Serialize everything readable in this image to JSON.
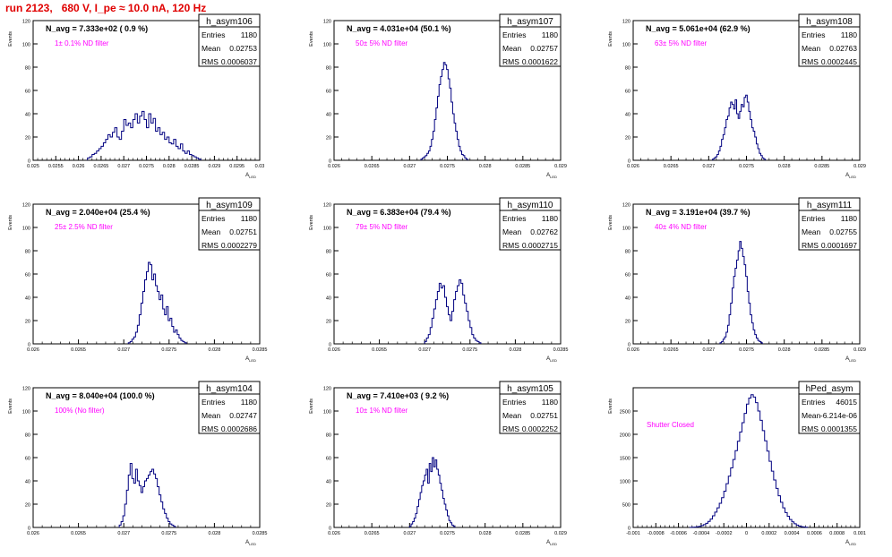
{
  "page_title": "run 2123,   680 V, I_pe ≈ 10.0 nA, 120 Hz",
  "colors": {
    "title": "#e00000",
    "annotation": "#ff00ff",
    "series": "#000080",
    "axis": "#000000"
  },
  "stats_labels": {
    "entries": "Entries",
    "mean": "Mean",
    "rms": "RMS"
  },
  "chart_data": [
    {
      "type": "bar",
      "histogram": true,
      "name": "h_asym106",
      "navg": "N_avg = 7.333e+02 ( 0.9 %)",
      "annotation": "1± 0.1% ND filter",
      "stats": {
        "entries": "1180",
        "mean": "0.02753",
        "rms": "0.0006037"
      },
      "xlabel": "A_{LED}",
      "ylabel": "Events",
      "xlim": [
        0.025,
        0.03
      ],
      "ylim": [
        0,
        120
      ],
      "xticks": [
        "0.025",
        "0.0255",
        "0.026",
        "0.0265",
        "0.027",
        "0.0275",
        "0.028",
        "0.0285",
        "0.029",
        "0.0295",
        "0.03"
      ],
      "yticks": [
        "0",
        "20",
        "40",
        "60",
        "80",
        "100",
        "120"
      ],
      "bin_start": 0.0262,
      "bin_width": 5e-05,
      "counts": [
        2,
        3,
        5,
        6,
        8,
        10,
        12,
        15,
        18,
        22,
        20,
        24,
        28,
        20,
        18,
        25,
        35,
        30,
        32,
        28,
        35,
        40,
        32,
        38,
        42,
        35,
        28,
        40,
        32,
        36,
        25,
        28,
        22,
        24,
        18,
        20,
        15,
        14,
        18,
        12,
        10,
        14,
        8,
        6,
        8,
        5,
        4,
        3,
        2,
        1
      ]
    },
    {
      "type": "bar",
      "histogram": true,
      "name": "h_asym107",
      "navg": "N_avg = 4.031e+04 (50.1 %)",
      "annotation": "50± 5% ND filter",
      "stats": {
        "entries": "1180",
        "mean": "0.02757",
        "rms": "0.0001622"
      },
      "xlabel": "A_{LED}",
      "ylabel": "Events",
      "xlim": [
        0.026,
        0.029
      ],
      "ylim": [
        0,
        120
      ],
      "xticks": [
        "0.026",
        "0.0265",
        "0.027",
        "0.0275",
        "0.028",
        "0.0285",
        "0.029"
      ],
      "yticks": [
        "0",
        "20",
        "40",
        "60",
        "80",
        "100",
        "120"
      ],
      "bin_start": 0.02715,
      "bin_width": 2e-05,
      "counts": [
        1,
        2,
        3,
        4,
        6,
        8,
        12,
        18,
        25,
        35,
        45,
        55,
        65,
        72,
        78,
        84,
        82,
        78,
        70,
        62,
        50,
        40,
        32,
        25,
        18,
        12,
        8,
        5,
        4,
        2,
        1
      ]
    },
    {
      "type": "bar",
      "histogram": true,
      "name": "h_asym108",
      "navg": "N_avg = 5.061e+04 (62.9 %)",
      "annotation": "63± 5% ND filter",
      "stats": {
        "entries": "1180",
        "mean": "0.02763",
        "rms": "0.0002445"
      },
      "xlabel": "A_{LED}",
      "ylabel": "Events",
      "xlim": [
        0.026,
        0.029
      ],
      "ylim": [
        0,
        120
      ],
      "xticks": [
        "0.026",
        "0.0265",
        "0.027",
        "0.0275",
        "0.028",
        "0.0285",
        "0.029"
      ],
      "yticks": [
        "0",
        "20",
        "40",
        "60",
        "80",
        "100",
        "120"
      ],
      "bin_start": 0.02705,
      "bin_width": 2e-05,
      "counts": [
        1,
        2,
        3,
        5,
        8,
        12,
        18,
        22,
        28,
        35,
        38,
        45,
        50,
        48,
        44,
        52,
        40,
        36,
        42,
        48,
        46,
        54,
        56,
        50,
        42,
        35,
        28,
        25,
        20,
        14,
        10,
        6,
        4,
        2,
        1
      ]
    },
    {
      "type": "bar",
      "histogram": true,
      "name": "h_asym109",
      "navg": "N_avg = 2.040e+04 (25.4 %)",
      "annotation": "25± 2.5% ND filter",
      "stats": {
        "entries": "1180",
        "mean": "0.02751",
        "rms": "0.0002279"
      },
      "xlabel": "A_{LED}",
      "ylabel": "Events",
      "xlim": [
        0.026,
        0.0285
      ],
      "ylim": [
        0,
        120
      ],
      "xticks": [
        "0.026",
        "0.0265",
        "0.027",
        "0.0275",
        "0.028",
        "0.0285"
      ],
      "yticks": [
        "0",
        "20",
        "40",
        "60",
        "80",
        "100",
        "120"
      ],
      "bin_start": 0.02705,
      "bin_width": 2e-05,
      "counts": [
        1,
        2,
        4,
        6,
        10,
        16,
        25,
        35,
        45,
        55,
        62,
        70,
        68,
        55,
        60,
        50,
        45,
        38,
        42,
        30,
        25,
        32,
        20,
        22,
        15,
        10,
        12,
        8,
        5,
        3,
        2,
        1
      ]
    },
    {
      "type": "bar",
      "histogram": true,
      "name": "h_asym110",
      "navg": "N_avg = 6.383e+04 (79.4 %)",
      "annotation": "79± 5% ND filter",
      "stats": {
        "entries": "1180",
        "mean": "0.02762",
        "rms": "0.0002715"
      },
      "xlabel": "A_{LED}",
      "ylabel": "Events",
      "xlim": [
        0.026,
        0.0285
      ],
      "ylim": [
        0,
        120
      ],
      "xticks": [
        "0.026",
        "0.0265",
        "0.027",
        "0.0275",
        "0.028",
        "0.0285"
      ],
      "yticks": [
        "0",
        "20",
        "40",
        "60",
        "80",
        "100",
        "120"
      ],
      "bin_start": 0.027,
      "bin_width": 2e-05,
      "counts": [
        2,
        5,
        8,
        14,
        22,
        30,
        38,
        45,
        52,
        48,
        50,
        40,
        32,
        25,
        20,
        28,
        38,
        45,
        50,
        55,
        52,
        42,
        35,
        28,
        20,
        14,
        8,
        5,
        3,
        2,
        1
      ]
    },
    {
      "type": "bar",
      "histogram": true,
      "name": "h_asym111",
      "navg": "N_avg = 3.191e+04 (39.7 %)",
      "annotation": "40± 4% ND filter",
      "stats": {
        "entries": "1180",
        "mean": "0.02755",
        "rms": "0.0001697"
      },
      "xlabel": "A_{LED}",
      "ylabel": "Events",
      "xlim": [
        0.026,
        0.029
      ],
      "ylim": [
        0,
        120
      ],
      "xticks": [
        "0.026",
        "0.0265",
        "0.027",
        "0.0275",
        "0.028",
        "0.0285",
        "0.029"
      ],
      "yticks": [
        "0",
        "20",
        "40",
        "60",
        "80",
        "100",
        "120"
      ],
      "bin_start": 0.02715,
      "bin_width": 2e-05,
      "counts": [
        1,
        2,
        4,
        6,
        10,
        16,
        25,
        35,
        48,
        58,
        65,
        72,
        80,
        88,
        82,
        75,
        68,
        58,
        45,
        35,
        25,
        18,
        12,
        8,
        5,
        3,
        2,
        1
      ]
    },
    {
      "type": "bar",
      "histogram": true,
      "name": "h_asym104",
      "navg": "N_avg = 8.040e+04 (100.0 %)",
      "annotation": "100% (No filter)",
      "stats": {
        "entries": "1180",
        "mean": "0.02747",
        "rms": "0.0002686"
      },
      "xlabel": "A_{LED}",
      "ylabel": "Events",
      "xlim": [
        0.026,
        0.0285
      ],
      "ylim": [
        0,
        120
      ],
      "xticks": [
        "0.026",
        "0.0265",
        "0.027",
        "0.0275",
        "0.028",
        "0.0285"
      ],
      "yticks": [
        "0",
        "20",
        "40",
        "60",
        "80",
        "100",
        "120"
      ],
      "bin_start": 0.02695,
      "bin_width": 2e-05,
      "counts": [
        2,
        5,
        10,
        20,
        32,
        45,
        55,
        42,
        38,
        50,
        40,
        36,
        30,
        35,
        40,
        42,
        45,
        48,
        50,
        46,
        42,
        35,
        28,
        22,
        16,
        12,
        8,
        5,
        3,
        2,
        1
      ]
    },
    {
      "type": "bar",
      "histogram": true,
      "name": "h_asym105",
      "navg": "N_avg = 7.410e+03 ( 9.2 %)",
      "annotation": "10± 1% ND filter",
      "stats": {
        "entries": "1180",
        "mean": "0.02751",
        "rms": "0.0002252"
      },
      "xlabel": "A_{LED}",
      "ylabel": "Events",
      "xlim": [
        0.026,
        0.029
      ],
      "ylim": [
        0,
        120
      ],
      "xticks": [
        "0.026",
        "0.0265",
        "0.027",
        "0.0275",
        "0.028",
        "0.0285",
        "0.029"
      ],
      "yticks": [
        "0",
        "20",
        "40",
        "60",
        "80",
        "100",
        "120"
      ],
      "bin_start": 0.027,
      "bin_width": 2e-05,
      "counts": [
        1,
        3,
        5,
        8,
        12,
        18,
        24,
        30,
        36,
        40,
        45,
        50,
        38,
        55,
        48,
        60,
        52,
        58,
        50,
        45,
        38,
        32,
        25,
        20,
        15,
        10,
        6,
        4,
        2,
        1
      ]
    },
    {
      "type": "bar",
      "histogram": true,
      "name": "hPed_asym",
      "navg": "",
      "annotation": "Shutter Closed",
      "stats": {
        "entries": "46015",
        "mean": "-6.214e-06",
        "rms": "0.0001355"
      },
      "xlabel": "A_{LED}",
      "ylabel": "Events",
      "xlim": [
        -0.001,
        0.001
      ],
      "ylim": [
        0,
        3000
      ],
      "xticks": [
        "-0.001",
        "-0.0008",
        "-0.0006",
        "-0.0004",
        "-0.0002",
        "0",
        "0.0002",
        "0.0004",
        "0.0006",
        "0.0008",
        "0.001"
      ],
      "yticks": [
        "0",
        "500",
        "1000",
        "1500",
        "2000",
        "2500"
      ],
      "bin_start": -0.0005,
      "bin_width": 2e-05,
      "counts": [
        2,
        4,
        8,
        15,
        25,
        40,
        60,
        90,
        130,
        180,
        250,
        330,
        420,
        520,
        640,
        780,
        940,
        1100,
        1280,
        1460,
        1650,
        1850,
        2050,
        2250,
        2450,
        2650,
        2780,
        2850,
        2800,
        2680,
        2500,
        2300,
        2080,
        1860,
        1640,
        1420,
        1210,
        1020,
        840,
        680,
        540,
        420,
        320,
        240,
        170,
        120,
        80,
        50,
        30,
        18,
        10,
        5
      ]
    }
  ]
}
